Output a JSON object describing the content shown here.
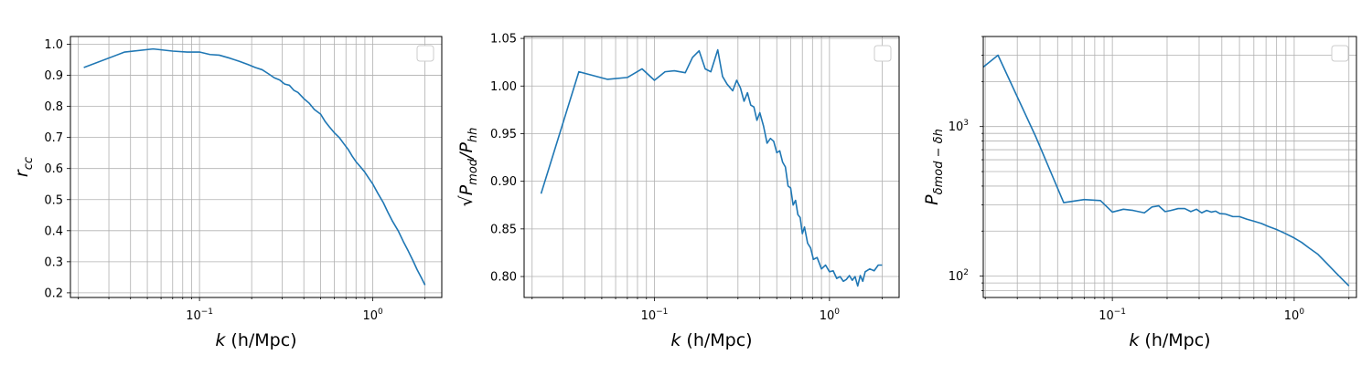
{
  "chart_data": [
    {
      "type": "line",
      "xscale": "log",
      "yscale": "linear",
      "xlim": [
        0.018,
        2.5
      ],
      "ylim": [
        0.185,
        1.025
      ],
      "grid": true,
      "grid_which": "both",
      "legend": "top-right",
      "xlabel": {
        "italic": "k",
        "rest": " (h/Mpc)"
      },
      "ylabel": {
        "text": "r",
        "sub": "cc"
      },
      "xticks": [
        {
          "value": 0.1,
          "base": "10",
          "exp": "−1"
        },
        {
          "value": 1,
          "base": "10",
          "exp": "0"
        }
      ],
      "yticks": [
        {
          "value": 0.2,
          "label": "0.2"
        },
        {
          "value": 0.3,
          "label": "0.3"
        },
        {
          "value": 0.4,
          "label": "0.4"
        },
        {
          "value": 0.5,
          "label": "0.5"
        },
        {
          "value": 0.6,
          "label": "0.6"
        },
        {
          "value": 0.7,
          "label": "0.7"
        },
        {
          "value": 0.8,
          "label": "0.8"
        },
        {
          "value": 0.9,
          "label": "0.9"
        },
        {
          "value": 1.0,
          "label": "1.0"
        }
      ],
      "series": [
        {
          "color": "#1f77b4",
          "x": [
            0.0215,
            0.037,
            0.054,
            0.07,
            0.085,
            0.1,
            0.115,
            0.13,
            0.15,
            0.17,
            0.19,
            0.21,
            0.23,
            0.25,
            0.27,
            0.29,
            0.31,
            0.33,
            0.35,
            0.37,
            0.4,
            0.43,
            0.46,
            0.5,
            0.53,
            0.56,
            0.6,
            0.64,
            0.68,
            0.72,
            0.76,
            0.8,
            0.85,
            0.9,
            0.95,
            1.0,
            1.07,
            1.15,
            1.22,
            1.3,
            1.4,
            1.5,
            1.6,
            1.7,
            1.8,
            1.9,
            2.0
          ],
          "y": [
            0.925,
            0.975,
            0.985,
            0.978,
            0.975,
            0.975,
            0.967,
            0.965,
            0.955,
            0.945,
            0.935,
            0.925,
            0.918,
            0.905,
            0.892,
            0.885,
            0.872,
            0.868,
            0.852,
            0.845,
            0.825,
            0.81,
            0.79,
            0.775,
            0.752,
            0.735,
            0.715,
            0.7,
            0.68,
            0.662,
            0.64,
            0.622,
            0.605,
            0.588,
            0.568,
            0.55,
            0.52,
            0.49,
            0.46,
            0.43,
            0.4,
            0.365,
            0.335,
            0.305,
            0.275,
            0.25,
            0.225
          ]
        }
      ]
    },
    {
      "type": "line",
      "xscale": "log",
      "yscale": "linear",
      "xlim": [
        0.018,
        2.5
      ],
      "ylim": [
        0.778,
        1.052
      ],
      "grid": true,
      "grid_which": "both",
      "legend": "top-right",
      "xlabel": {
        "italic": "k",
        "rest": " (h/Mpc)"
      },
      "ylabel": {
        "text": "√P",
        "sub": "mod",
        "mid": "/P",
        "sub2": "hh"
      },
      "xticks": [
        {
          "value": 0.1,
          "base": "10",
          "exp": "−1"
        },
        {
          "value": 1,
          "base": "10",
          "exp": "0"
        }
      ],
      "yticks": [
        {
          "value": 0.8,
          "label": "0.80"
        },
        {
          "value": 0.85,
          "label": "0.85"
        },
        {
          "value": 0.9,
          "label": "0.90"
        },
        {
          "value": 0.95,
          "label": "0.95"
        },
        {
          "value": 1.0,
          "label": "1.00"
        },
        {
          "value": 1.05,
          "label": "1.05"
        }
      ],
      "series": [
        {
          "color": "#1f77b4",
          "x": [
            0.0225,
            0.037,
            0.054,
            0.07,
            0.085,
            0.1,
            0.115,
            0.13,
            0.15,
            0.165,
            0.18,
            0.195,
            0.21,
            0.23,
            0.245,
            0.26,
            0.28,
            0.295,
            0.31,
            0.325,
            0.34,
            0.355,
            0.37,
            0.385,
            0.4,
            0.42,
            0.44,
            0.46,
            0.48,
            0.5,
            0.52,
            0.54,
            0.56,
            0.58,
            0.6,
            0.62,
            0.64,
            0.66,
            0.68,
            0.7,
            0.72,
            0.75,
            0.78,
            0.81,
            0.85,
            0.9,
            0.95,
            1.0,
            1.05,
            1.1,
            1.15,
            1.2,
            1.25,
            1.3,
            1.35,
            1.4,
            1.45,
            1.5,
            1.55,
            1.6,
            1.7,
            1.8,
            1.9,
            2.0
          ],
          "y": [
            0.887,
            1.015,
            1.007,
            1.009,
            1.018,
            1.006,
            1.015,
            1.016,
            1.014,
            1.03,
            1.037,
            1.018,
            1.015,
            1.038,
            1.01,
            1.002,
            0.995,
            1.006,
            0.998,
            0.984,
            0.993,
            0.98,
            0.978,
            0.964,
            0.972,
            0.958,
            0.94,
            0.945,
            0.942,
            0.93,
            0.932,
            0.92,
            0.915,
            0.895,
            0.893,
            0.875,
            0.88,
            0.865,
            0.862,
            0.845,
            0.852,
            0.835,
            0.83,
            0.818,
            0.82,
            0.808,
            0.812,
            0.805,
            0.806,
            0.798,
            0.8,
            0.795,
            0.797,
            0.801,
            0.796,
            0.8,
            0.79,
            0.801,
            0.795,
            0.805,
            0.808,
            0.806,
            0.812,
            0.812
          ]
        }
      ]
    },
    {
      "type": "line",
      "xscale": "log",
      "yscale": "log",
      "xlim": [
        0.0195,
        2.2
      ],
      "ylim": [
        72,
        4000
      ],
      "grid": true,
      "grid_which": "both",
      "legend": "top-right",
      "xlabel": {
        "italic": "k",
        "rest": " (h/Mpc)"
      },
      "ylabel": {
        "text": "P",
        "sub": "δmod − δh"
      },
      "xticks": [
        {
          "value": 0.1,
          "base": "10",
          "exp": "−1"
        },
        {
          "value": 1,
          "base": "10",
          "exp": "0"
        }
      ],
      "yticks": [
        {
          "value": 100,
          "base": "10",
          "exp": "2"
        },
        {
          "value": 1000,
          "base": "10",
          "exp": "3"
        }
      ],
      "series": [
        {
          "color": "#1f77b4",
          "x": [
            0.0195,
            0.0235,
            0.038,
            0.054,
            0.07,
            0.086,
            0.1,
            0.115,
            0.13,
            0.15,
            0.165,
            0.18,
            0.195,
            0.21,
            0.23,
            0.25,
            0.27,
            0.29,
            0.31,
            0.33,
            0.35,
            0.37,
            0.39,
            0.42,
            0.46,
            0.5,
            0.55,
            0.6,
            0.66,
            0.72,
            0.8,
            0.9,
            1.0,
            1.1,
            1.2,
            1.35,
            1.5,
            1.7,
            2.0
          ],
          "y": [
            2500,
            3000,
            850,
            310,
            325,
            320,
            268,
            280,
            275,
            265,
            290,
            295,
            270,
            275,
            283,
            283,
            270,
            280,
            265,
            275,
            268,
            272,
            262,
            260,
            250,
            250,
            240,
            233,
            225,
            215,
            205,
            192,
            180,
            168,
            155,
            140,
            123,
            105,
            86
          ]
        }
      ]
    }
  ]
}
